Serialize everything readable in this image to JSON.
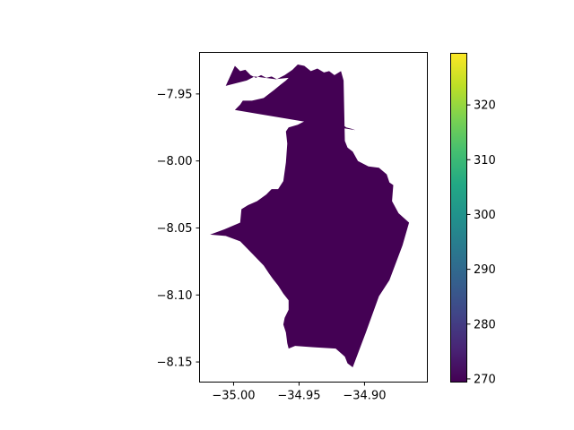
{
  "chart_data": {
    "type": "choropleth",
    "title": "",
    "xlabel": "",
    "ylabel": "",
    "xlim": [
      -35.026,
      -34.852
    ],
    "ylim": [
      -8.165,
      -7.919
    ],
    "x_ticks": [
      -35.0,
      -34.95,
      -34.9
    ],
    "x_tick_labels": [
      "−35.00",
      "−34.95",
      "−34.90"
    ],
    "y_ticks": [
      -7.95,
      -8.0,
      -8.05,
      -8.1,
      -8.15
    ],
    "y_tick_labels": [
      "−7.95",
      "−8.00",
      "−8.05",
      "−8.10",
      "−8.15"
    ],
    "grid": false,
    "regions": [
      {
        "value": 270,
        "fill": "#440154",
        "boundary": [
          [
            -34.999,
            -7.929
          ],
          [
            -34.995,
            -7.933
          ],
          [
            -34.991,
            -7.932
          ],
          [
            -34.987,
            -7.936
          ],
          [
            -34.983,
            -7.938
          ],
          [
            -34.979,
            -7.936
          ],
          [
            -34.975,
            -7.938
          ],
          [
            -34.971,
            -7.937
          ],
          [
            -34.967,
            -7.939
          ],
          [
            -34.961,
            -7.936
          ],
          [
            -34.955,
            -7.932
          ],
          [
            -34.951,
            -7.928
          ],
          [
            -34.946,
            -7.929
          ],
          [
            -34.941,
            -7.933
          ],
          [
            -34.936,
            -7.931
          ],
          [
            -34.931,
            -7.934
          ],
          [
            -34.927,
            -7.933
          ],
          [
            -34.923,
            -7.936
          ],
          [
            -34.918,
            -7.933
          ],
          [
            -34.916,
            -7.94
          ],
          [
            -34.915,
            -7.985
          ],
          [
            -34.913,
            -7.99
          ],
          [
            -34.909,
            -7.993
          ],
          [
            -34.905,
            -8.0
          ],
          [
            -34.897,
            -8.004
          ],
          [
            -34.889,
            -8.005
          ],
          [
            -34.883,
            -8.01
          ],
          [
            -34.881,
            -8.016
          ],
          [
            -34.878,
            -8.018
          ],
          [
            -34.879,
            -8.03
          ],
          [
            -34.874,
            -8.039
          ],
          [
            -34.866,
            -8.046
          ],
          [
            -34.871,
            -8.063
          ],
          [
            -34.881,
            -8.089
          ],
          [
            -34.889,
            -8.101
          ],
          [
            -34.899,
            -8.128
          ],
          [
            -34.909,
            -8.154
          ],
          [
            -34.913,
            -8.151
          ],
          [
            -34.915,
            -8.146
          ],
          [
            -34.922,
            -8.14
          ],
          [
            -34.939,
            -8.139
          ],
          [
            -34.953,
            -8.138
          ],
          [
            -34.958,
            -8.14
          ],
          [
            -34.959,
            -8.136
          ],
          [
            -34.96,
            -8.128
          ],
          [
            -34.962,
            -8.122
          ],
          [
            -34.961,
            -8.117
          ],
          [
            -34.958,
            -8.111
          ],
          [
            -34.958,
            -8.104
          ],
          [
            -34.962,
            -8.099
          ],
          [
            -34.966,
            -8.093
          ],
          [
            -34.97,
            -8.088
          ],
          [
            -34.973,
            -8.084
          ],
          [
            -34.977,
            -8.078
          ],
          [
            -34.983,
            -8.072
          ],
          [
            -34.99,
            -8.065
          ],
          [
            -34.995,
            -8.06
          ],
          [
            -35.006,
            -8.056
          ],
          [
            -35.018,
            -8.055
          ],
          [
            -35.007,
            -8.051
          ],
          [
            -34.995,
            -8.046
          ],
          [
            -34.994,
            -8.036
          ],
          [
            -34.989,
            -8.033
          ],
          [
            -34.982,
            -8.03
          ],
          [
            -34.975,
            -8.025
          ],
          [
            -34.971,
            -8.021
          ],
          [
            -34.966,
            -8.021
          ],
          [
            -34.962,
            -8.015
          ],
          [
            -34.96,
            -8.001
          ],
          [
            -34.959,
            -7.987
          ],
          [
            -34.96,
            -7.978
          ],
          [
            -34.958,
            -7.975
          ],
          [
            -34.951,
            -7.973
          ],
          [
            -34.947,
            -7.971
          ],
          [
            -34.942,
            -7.969
          ],
          [
            -34.928,
            -7.969
          ],
          [
            -34.924,
            -7.973
          ],
          [
            -34.918,
            -7.972
          ],
          [
            -34.914,
            -7.975
          ],
          [
            -34.91,
            -7.976
          ],
          [
            -34.907,
            -7.977
          ],
          [
            -34.999,
            -7.962
          ],
          [
            -34.995,
            -7.958
          ],
          [
            -34.993,
            -7.955
          ],
          [
            -34.986,
            -7.955
          ],
          [
            -34.977,
            -7.953
          ],
          [
            -34.969,
            -7.947
          ],
          [
            -34.964,
            -7.943
          ],
          [
            -34.96,
            -7.94
          ],
          [
            -34.958,
            -7.938
          ],
          [
            -34.968,
            -7.939
          ],
          [
            -34.984,
            -7.937
          ],
          [
            -34.99,
            -7.94
          ],
          [
            -35.006,
            -7.944
          ],
          [
            -34.999,
            -7.929
          ]
        ]
      }
    ],
    "colorbar": {
      "colormap": "viridis",
      "min": 269.5,
      "max": 329.5,
      "ticks": [
        270,
        280,
        290,
        300,
        310,
        320
      ],
      "tick_labels": [
        "270",
        "280",
        "290",
        "300",
        "310",
        "320"
      ],
      "label": ""
    }
  }
}
